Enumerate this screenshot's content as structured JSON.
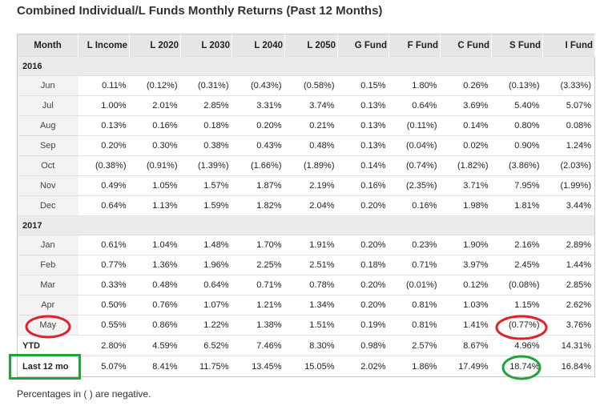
{
  "title": "Combined Individual/L Funds Monthly Returns (Past 12 Months)",
  "columns": [
    "Month",
    "L Income",
    "L 2020",
    "L 2030",
    "L 2040",
    "L 2050",
    "G Fund",
    "F Fund",
    "C Fund",
    "S Fund",
    "I Fund"
  ],
  "sections": [
    {
      "year": "2016",
      "rows": [
        {
          "month": "Jun",
          "values": [
            "0.11%",
            "(0.12%)",
            "(0.31%)",
            "(0.43%)",
            "(0.58%)",
            "0.15%",
            "1.80%",
            "0.26%",
            "(0.13%)",
            "(3.33%)"
          ]
        },
        {
          "month": "Jul",
          "values": [
            "1.00%",
            "2.01%",
            "2.85%",
            "3.31%",
            "3.74%",
            "0.13%",
            "0.64%",
            "3.69%",
            "5.40%",
            "5.07%"
          ]
        },
        {
          "month": "Aug",
          "values": [
            "0.13%",
            "0.16%",
            "0.18%",
            "0.20%",
            "0.21%",
            "0.13%",
            "(0.11%)",
            "0.14%",
            "0.80%",
            "0.08%"
          ]
        },
        {
          "month": "Sep",
          "values": [
            "0.20%",
            "0.30%",
            "0.38%",
            "0.43%",
            "0.48%",
            "0.13%",
            "(0.04%)",
            "0.02%",
            "0.90%",
            "1.24%"
          ]
        },
        {
          "month": "Oct",
          "values": [
            "(0.38%)",
            "(0.91%)",
            "(1.39%)",
            "(1.66%)",
            "(1.89%)",
            "0.14%",
            "(0.74%)",
            "(1.82%)",
            "(3.86%)",
            "(2.03%)"
          ]
        },
        {
          "month": "Nov",
          "values": [
            "0.49%",
            "1.05%",
            "1.57%",
            "1.87%",
            "2.19%",
            "0.16%",
            "(2.35%)",
            "3.71%",
            "7.95%",
            "(1.99%)"
          ]
        },
        {
          "month": "Dec",
          "values": [
            "0.64%",
            "1.13%",
            "1.59%",
            "1.82%",
            "2.04%",
            "0.20%",
            "0.16%",
            "1.98%",
            "1.81%",
            "3.44%"
          ]
        }
      ]
    },
    {
      "year": "2017",
      "rows": [
        {
          "month": "Jan",
          "values": [
            "0.61%",
            "1.04%",
            "1.48%",
            "1.70%",
            "1.91%",
            "0.20%",
            "0.23%",
            "1.90%",
            "2.16%",
            "2.89%"
          ]
        },
        {
          "month": "Feb",
          "values": [
            "0.77%",
            "1.36%",
            "1.96%",
            "2.25%",
            "2.51%",
            "0.18%",
            "0.71%",
            "3.97%",
            "2.45%",
            "1.44%"
          ]
        },
        {
          "month": "Mar",
          "values": [
            "0.33%",
            "0.48%",
            "0.64%",
            "0.71%",
            "0.78%",
            "0.20%",
            "(0.01%)",
            "0.12%",
            "(0.08%)",
            "2.85%"
          ]
        },
        {
          "month": "Apr",
          "values": [
            "0.50%",
            "0.76%",
            "1.07%",
            "1.21%",
            "1.34%",
            "0.20%",
            "0.81%",
            "1.03%",
            "1.15%",
            "2.62%"
          ]
        },
        {
          "month": "May",
          "values": [
            "0.55%",
            "0.86%",
            "1.22%",
            "1.38%",
            "1.51%",
            "0.19%",
            "0.81%",
            "1.41%",
            "(0.77%)",
            "3.76%"
          ]
        }
      ]
    }
  ],
  "summary": [
    {
      "label": "YTD",
      "values": [
        "2.80%",
        "4.59%",
        "6.52%",
        "7.46%",
        "8.30%",
        "0.98%",
        "2.57%",
        "8.67%",
        "4.96%",
        "14.31%"
      ]
    },
    {
      "label": "Last 12 mo",
      "values": [
        "5.07%",
        "8.41%",
        "11.75%",
        "13.45%",
        "15.05%",
        "2.02%",
        "1.86%",
        "17.49%",
        "18.74%",
        "16.84%"
      ]
    }
  ],
  "note": "Percentages in (  ) are negative.",
  "colors": {
    "red_marker": "#e0202a",
    "green_marker": "#1fa33a",
    "header_bg": "#e6e6e6",
    "year_bg": "#ebebeb"
  },
  "annotations": [
    {
      "shape": "ellipse",
      "color": "red",
      "target": "May"
    },
    {
      "shape": "ellipse",
      "color": "red",
      "target": "(0.77%)"
    },
    {
      "shape": "rectangle",
      "color": "green",
      "target": "Last 12 mo"
    },
    {
      "shape": "ellipse",
      "color": "green",
      "target": "18.74%"
    }
  ]
}
